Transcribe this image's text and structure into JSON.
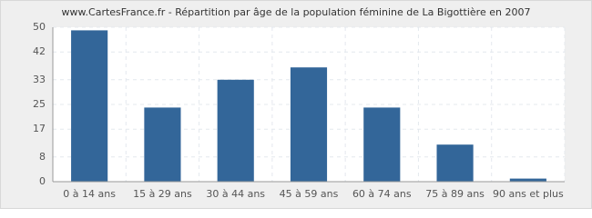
{
  "chart_data": {
    "type": "bar",
    "title": "www.CartesFrance.fr - Répartition par âge de la population féminine de La Bigottière en 2007",
    "categories": [
      "0 à 14 ans",
      "15 à 29 ans",
      "30 à 44 ans",
      "45 à 59 ans",
      "60 à 74 ans",
      "75 à 89 ans",
      "90 ans et plus"
    ],
    "values": [
      49,
      24,
      33,
      37,
      24,
      12,
      1
    ],
    "color": "#336699",
    "ylim": [
      0,
      50
    ],
    "yticks": [
      0,
      8,
      17,
      25,
      33,
      42,
      50
    ],
    "grid": true
  }
}
